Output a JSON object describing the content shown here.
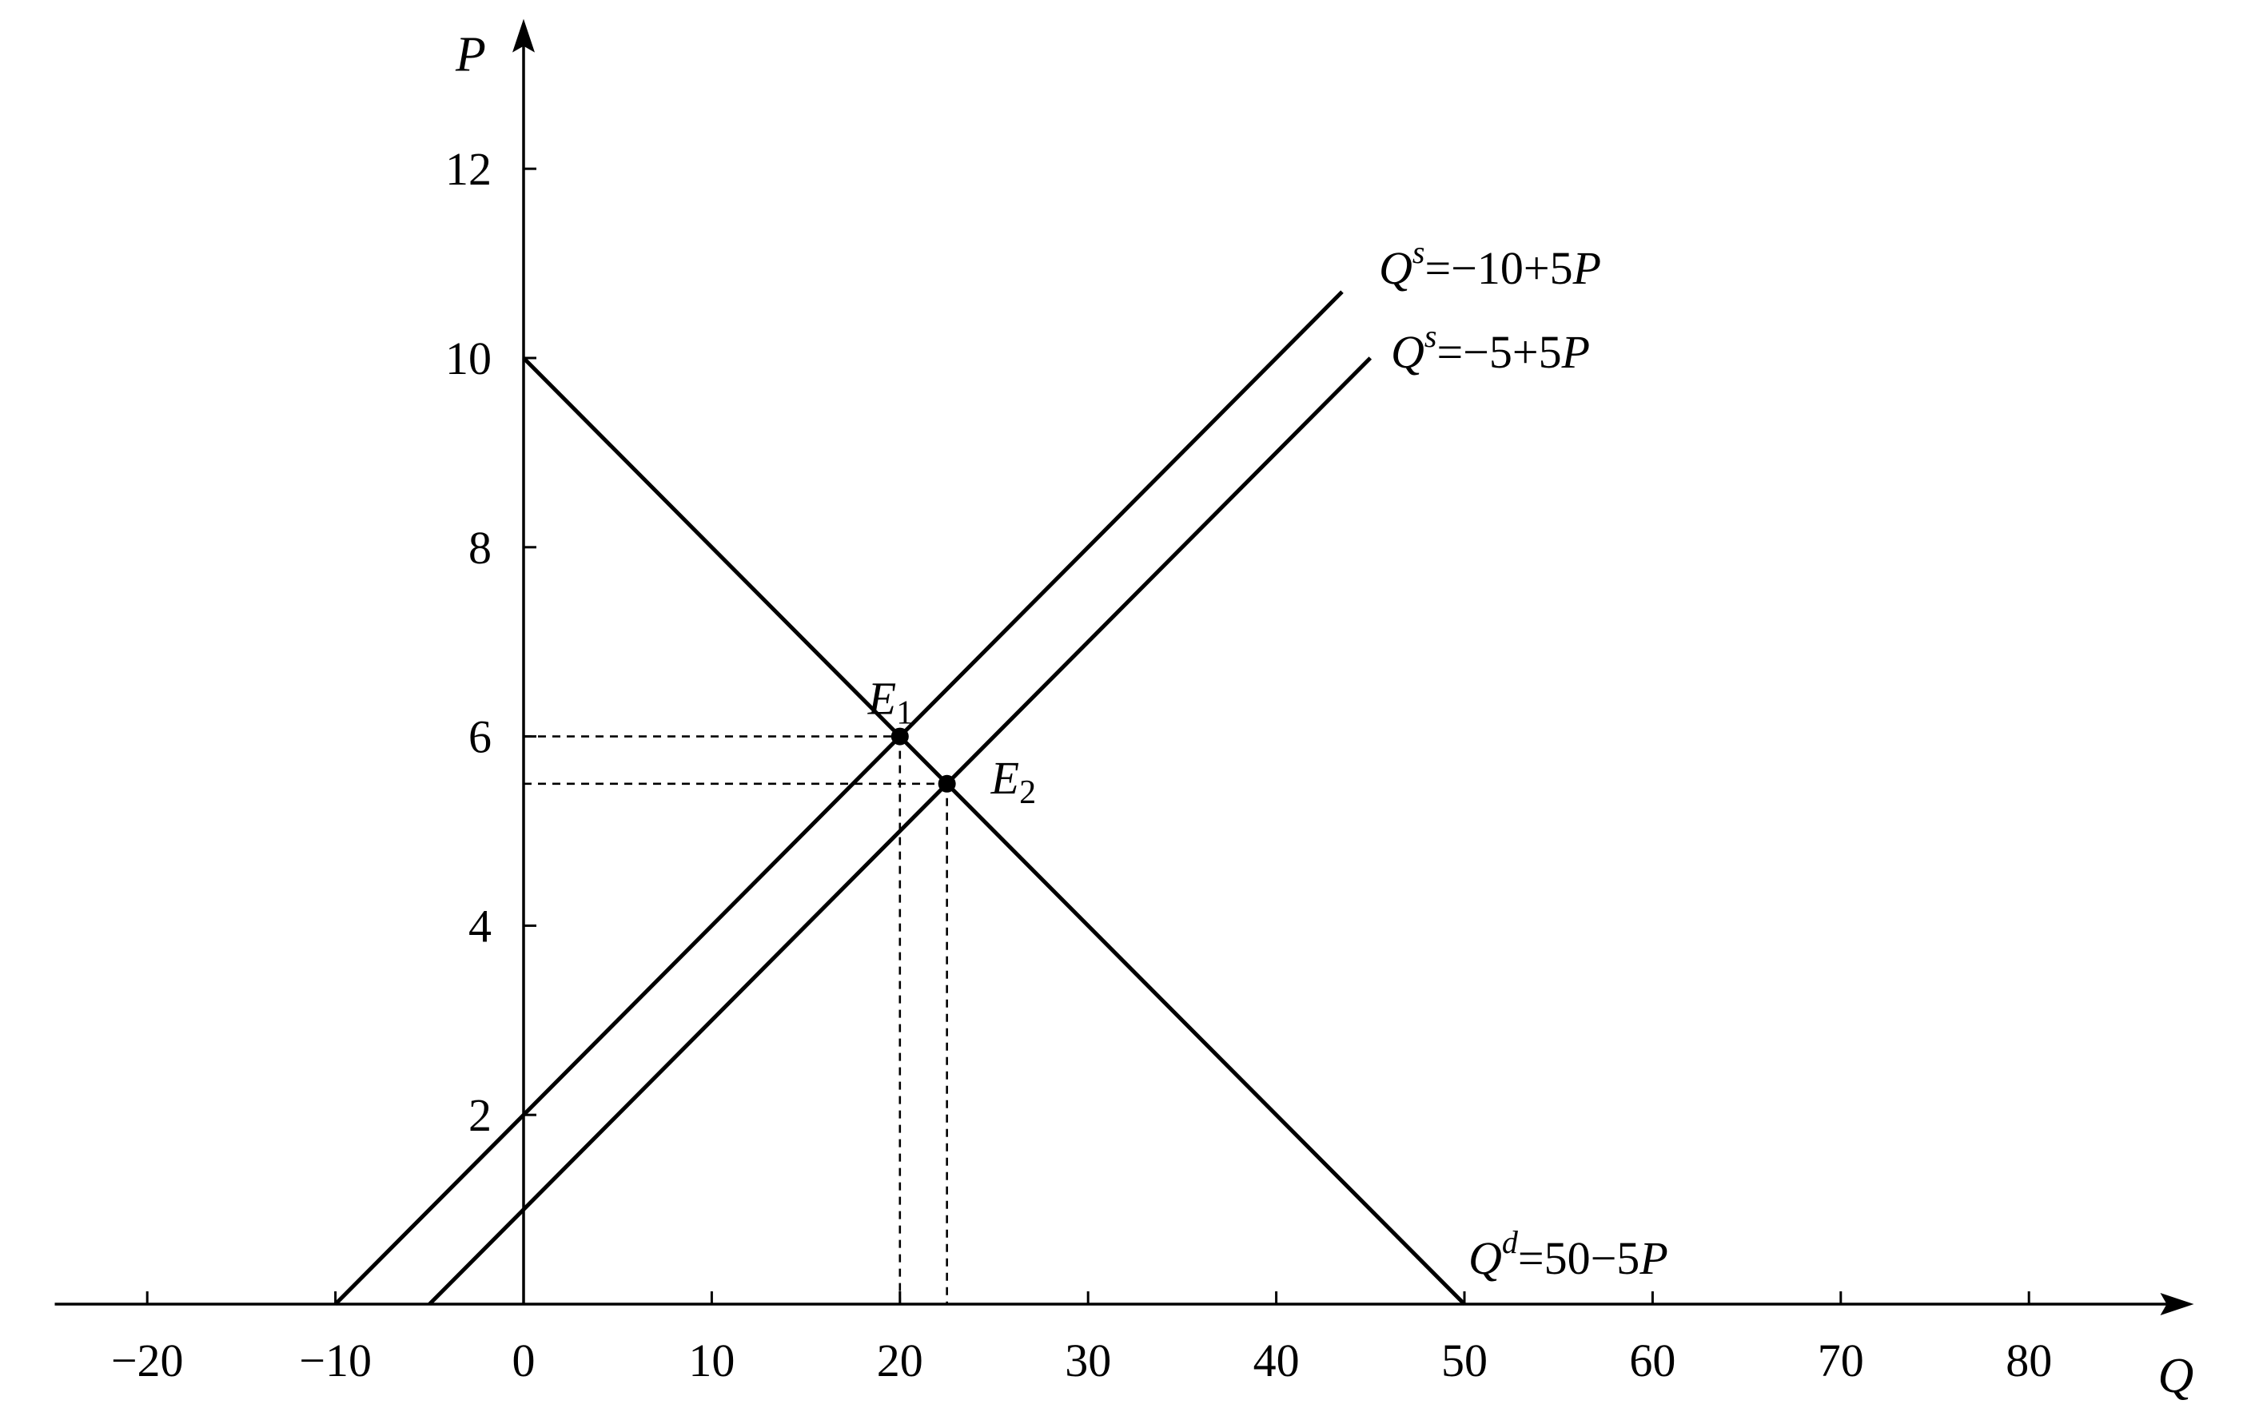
{
  "chart_data": {
    "type": "line",
    "x_axis": {
      "label": "Q",
      "range": [
        -25,
        88
      ],
      "ticks": [
        -20,
        -10,
        0,
        10,
        20,
        30,
        40,
        50,
        60,
        70,
        80
      ],
      "tick_labels": [
        "−20",
        "−10",
        "0",
        "10",
        "20",
        "30",
        "40",
        "50",
        "60",
        "70",
        "80"
      ]
    },
    "y_axis": {
      "label": "P",
      "range": [
        0,
        13.5
      ],
      "ticks": [
        2,
        4,
        6,
        8,
        10,
        12
      ],
      "tick_labels": [
        "2",
        "4",
        "6",
        "8",
        "10",
        "12"
      ]
    },
    "grid": false,
    "series": [
      {
        "label_base": "Q",
        "label_sup": "d",
        "label_rest": "=50−5",
        "label_tail": "P",
        "x": [
          0,
          50
        ],
        "y": [
          10,
          0
        ]
      },
      {
        "label_base": "Q",
        "label_sup": "s",
        "label_rest": "=−10+5",
        "label_tail": "P",
        "x": [
          -10,
          43.5
        ],
        "y": [
          0,
          10.7
        ]
      },
      {
        "label_base": "Q",
        "label_sup": "s",
        "label_rest": "=−5+5",
        "label_tail": "P",
        "x": [
          -5,
          45
        ],
        "y": [
          0,
          10
        ]
      }
    ],
    "points": [
      {
        "label_base": "E",
        "label_sub": "1",
        "x": 20,
        "y": 6
      },
      {
        "label_base": "E",
        "label_sub": "2",
        "x": 22.5,
        "y": 5.5
      }
    ]
  }
}
